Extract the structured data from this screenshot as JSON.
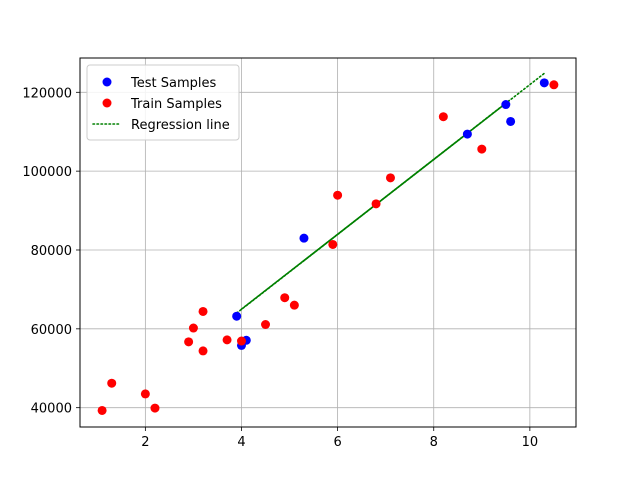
{
  "chart_data": {
    "type": "scatter",
    "title": "",
    "xlabel": "",
    "ylabel": "",
    "xlim": [
      0.64,
      10.96
    ],
    "ylim": [
      35100,
      128700
    ],
    "grid": true,
    "legend_position": "top-left",
    "x_ticks": [
      2,
      4,
      6,
      8,
      10
    ],
    "y_ticks": [
      40000,
      60000,
      80000,
      100000,
      120000
    ],
    "x_tick_labels": [
      "2",
      "4",
      "6",
      "8",
      "10"
    ],
    "y_tick_labels": [
      "40000",
      "60000",
      "80000",
      "100000",
      "120000"
    ],
    "series": [
      {
        "name": "Test Samples",
        "kind": "scatter",
        "color": "#0000ff",
        "points": [
          [
            3.9,
            63200
          ],
          [
            4.0,
            55800
          ],
          [
            4.1,
            57100
          ],
          [
            5.3,
            83000
          ],
          [
            8.7,
            109400
          ],
          [
            9.5,
            116900
          ],
          [
            9.6,
            112600
          ],
          [
            10.3,
            122400
          ]
        ]
      },
      {
        "name": "Train Samples",
        "kind": "scatter",
        "color": "#ff0000",
        "points": [
          [
            1.1,
            39300
          ],
          [
            1.3,
            46200
          ],
          [
            2.0,
            43500
          ],
          [
            2.2,
            39900
          ],
          [
            2.9,
            56700
          ],
          [
            3.0,
            60200
          ],
          [
            3.2,
            54400
          ],
          [
            3.2,
            64400
          ],
          [
            3.7,
            57200
          ],
          [
            4.0,
            56900
          ],
          [
            4.5,
            61100
          ],
          [
            4.9,
            67900
          ],
          [
            5.1,
            66000
          ],
          [
            5.9,
            81400
          ],
          [
            6.0,
            93900
          ],
          [
            6.8,
            91700
          ],
          [
            7.1,
            98300
          ],
          [
            8.2,
            113800
          ],
          [
            9.0,
            105600
          ],
          [
            10.5,
            121900
          ]
        ]
      },
      {
        "name": "Regression line",
        "kind": "line",
        "style": "dotted",
        "color": "#008000",
        "segments": [
          [
            [
              3.9,
              64000
            ],
            [
              10.3,
              124800
            ]
          ],
          [
            [
              4.0,
              65000
            ],
            [
              9.5,
              117200
            ]
          ],
          [
            [
              4.1,
              65900
            ],
            [
              9.6,
              118200
            ]
          ],
          [
            [
              5.3,
              77300
            ],
            [
              8.7,
              109600
            ]
          ]
        ]
      }
    ]
  }
}
